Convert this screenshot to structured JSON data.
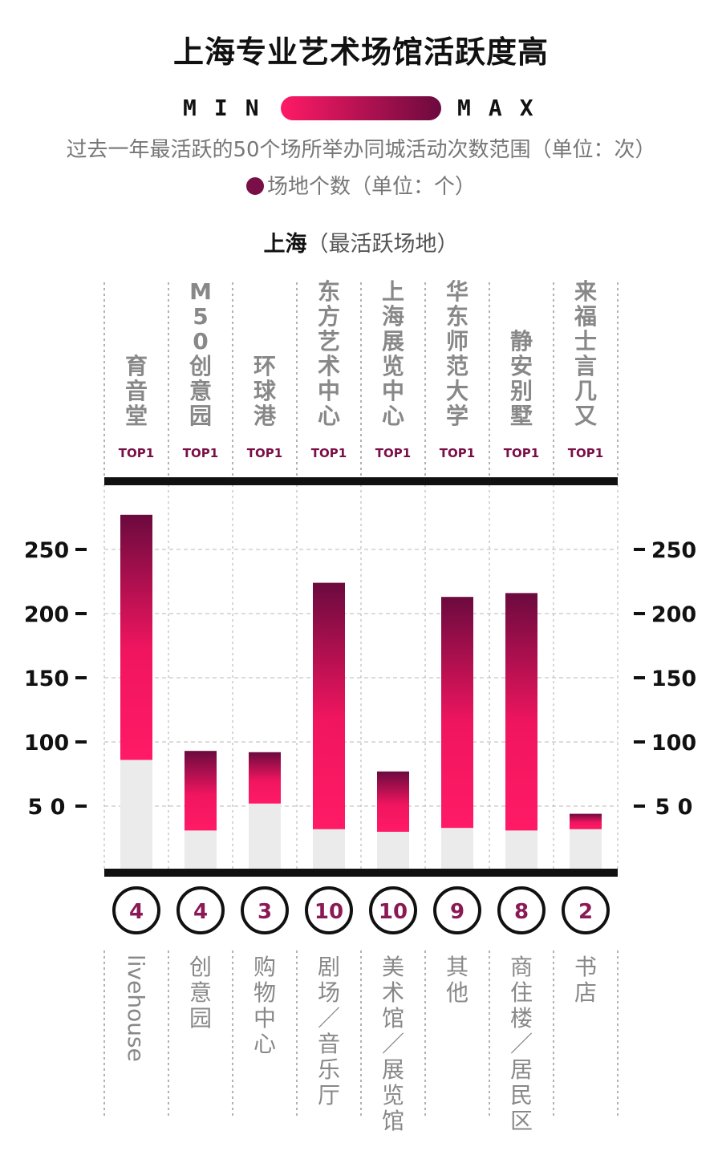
{
  "title": "上海专业艺术场馆活跃度高",
  "legend": {
    "min_label": "MIN",
    "max_label": "MAX",
    "color_min": "#ff1a66",
    "color_max": "#6b0a3e",
    "description": "过去一年最活跃的50个场所举办同城活动次数范围（单位：次）",
    "dot_description": "场地个数（单位：个）",
    "dot_color": "#7a0f47"
  },
  "subtitle": {
    "city": "上海",
    "note": "（最活跃场地）"
  },
  "chart_data": {
    "type": "bar",
    "title": "上海专业艺术场馆活跃度高",
    "xlabel": "",
    "ylabel": "",
    "ylim": [
      0,
      300
    ],
    "y_ticks": [
      50,
      100,
      150,
      200,
      250
    ],
    "y_tick_labels": [
      "5 0",
      "100",
      "150",
      "200",
      "250"
    ],
    "grid": true,
    "categories": [
      "livehouse",
      "创意园",
      "购物中心",
      "剧场/音乐厅",
      "美术馆/展览馆",
      "其他",
      "商住楼/居民区",
      "书店"
    ],
    "top_venues": [
      "育音堂",
      "M50创意园",
      "环球港",
      "东方艺术中心",
      "上海展览中心",
      "华东师范大学",
      "静安别墅",
      "来福士言几又"
    ],
    "top_label": "TOP1",
    "range_min": [
      86,
      31,
      52,
      32,
      30,
      33,
      31,
      32
    ],
    "range_max": [
      277,
      93,
      92,
      224,
      77,
      213,
      216,
      44
    ],
    "venue_counts": [
      4,
      4,
      3,
      10,
      10,
      9,
      8,
      2
    ],
    "colors": {
      "bar_low": "#ff1a66",
      "bar_high": "#6b0a3e",
      "base": "#ebebeb",
      "count_text": "#8a1a55"
    }
  }
}
